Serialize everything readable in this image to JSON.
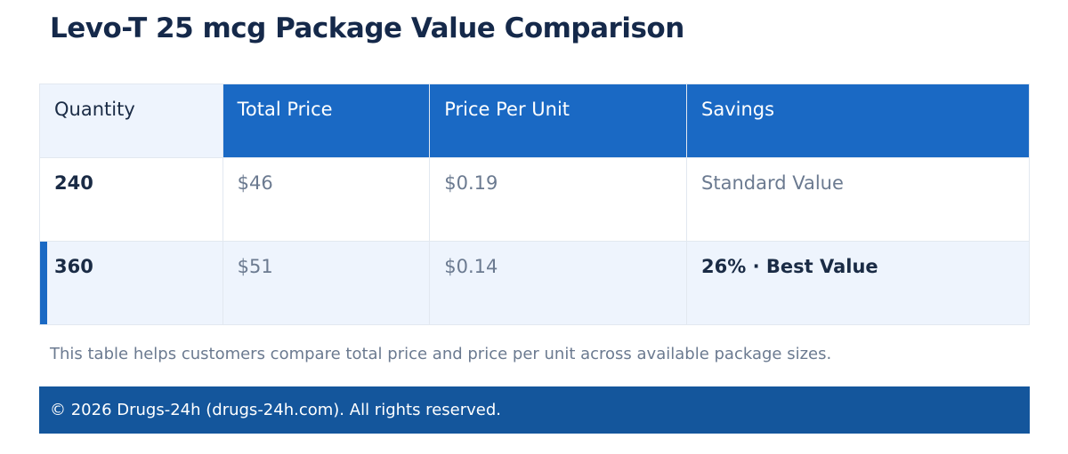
{
  "title": "Levo-T 25 mcg Package Value Comparison",
  "table": {
    "header": [
      "Quantity",
      "Total Price",
      "Price Per Unit",
      "Savings"
    ],
    "rows": [
      [
        "240",
        "$46",
        "$0.19",
        "Standard Value"
      ],
      [
        "360",
        "$51",
        "$0.14",
        "26% · Best Value"
      ]
    ]
  },
  "note": "This table helps customers compare total price and price per unit across available package sizes.",
  "footer": "© 2026 Drugs-24h (drugs-24h.com). All rights reserved."
}
